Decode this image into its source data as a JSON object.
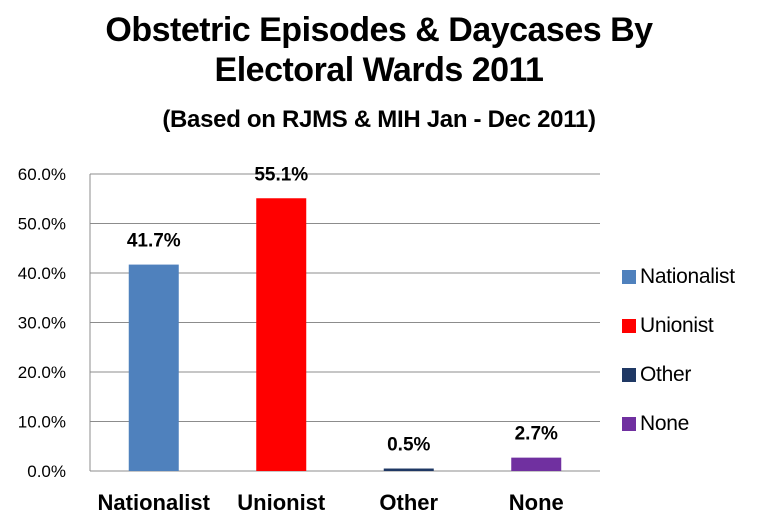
{
  "chart_data": {
    "type": "bar",
    "title": "Obstetric Episodes & Daycases By",
    "title_line2": "Electoral Wards 2011",
    "subtitle": "(Based on RJMS & MIH Jan - Dec 2011)",
    "categories": [
      "Nationalist",
      "Unionist",
      "Other",
      "None"
    ],
    "values": [
      41.7,
      55.1,
      0.5,
      2.7
    ],
    "data_labels": [
      "41.7%",
      "55.1%",
      "0.5%",
      "2.7%"
    ],
    "colors": [
      "#4F81BD",
      "#FF0000",
      "#1F3864",
      "#7030A0"
    ],
    "ylim": [
      0,
      60
    ],
    "yticks": [
      "0.0%",
      "10.0%",
      "20.0%",
      "30.0%",
      "40.0%",
      "50.0%",
      "60.0%"
    ],
    "grid": true,
    "legend_position": "right",
    "xlabel": "",
    "ylabel": ""
  }
}
